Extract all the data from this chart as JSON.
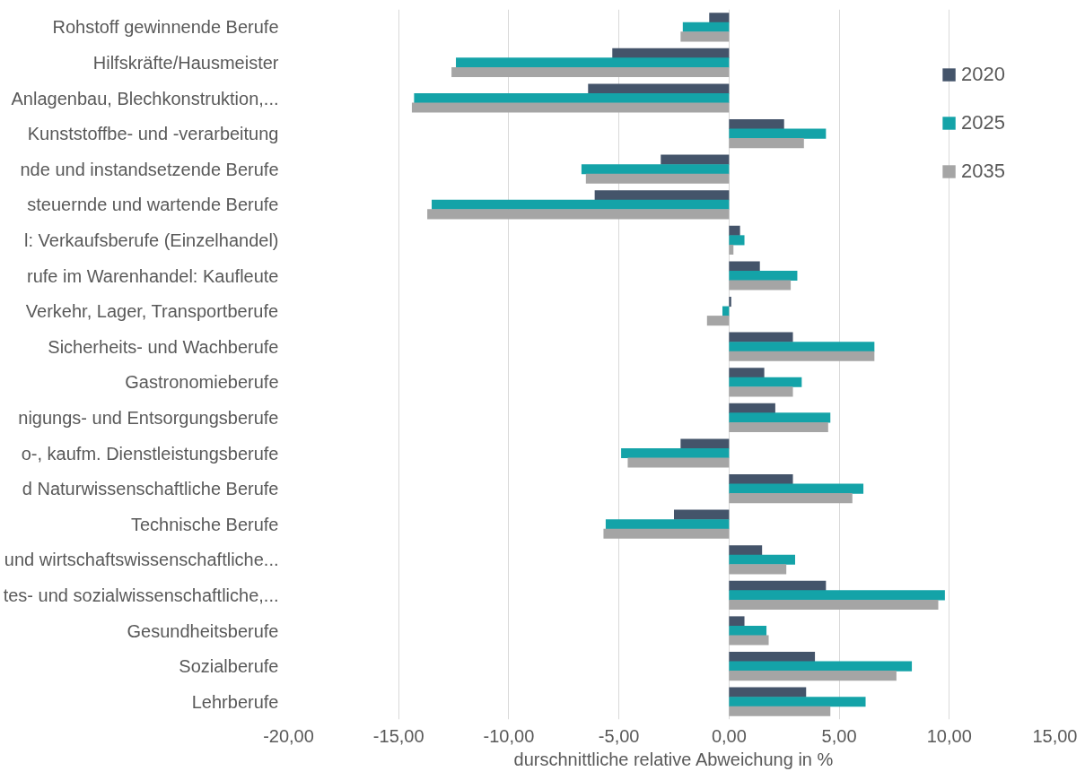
{
  "chart_data": {
    "type": "bar",
    "orientation": "horizontal",
    "xlabel": "durschnittliche relative Abweichung in %",
    "categories": [
      "Rohstoff gewinnende Berufe",
      "Hilfskräfte/Hausmeister",
      "Anlagenbau, Blechkonstruktion,...",
      "Kunststoffbe- und -verarbeitung",
      "nde und instandsetzende Berufe",
      "steuernde und wartende Berufe",
      "l: Verkaufsberufe (Einzelhandel)",
      "rufe im Warenhandel: Kaufleute",
      "Verkehr, Lager, Transportberufe",
      "Sicherheits- und Wachberufe",
      "Gastronomieberufe",
      "nigungs- und Entsorgungsberufe",
      "o-, kaufm. Dienstleistungsberufe",
      "d Naturwissenschaftliche Berufe",
      "Technische Berufe",
      "und wirtschaftswissenschaftliche...",
      "tes- und sozialwissenschaftliche,...",
      "Gesundheitsberufe",
      "Sozialberufe",
      "Lehrberufe"
    ],
    "series": [
      {
        "name": "2020",
        "color": "#44546a",
        "values": [
          -0.9,
          -5.3,
          -6.4,
          2.5,
          -3.1,
          -6.1,
          0.5,
          1.4,
          0.1,
          2.9,
          1.6,
          2.1,
          -2.2,
          2.9,
          -2.5,
          1.5,
          4.4,
          0.7,
          3.9,
          3.5
        ]
      },
      {
        "name": "2025",
        "color": "#14a3a8",
        "values": [
          -2.1,
          -12.4,
          -14.3,
          4.4,
          -6.7,
          -13.5,
          0.7,
          3.1,
          -0.3,
          6.6,
          3.3,
          4.6,
          -4.9,
          6.1,
          -5.6,
          3.0,
          9.8,
          1.7,
          8.3,
          6.2
        ]
      },
      {
        "name": "2035",
        "color": "#a5a5a5",
        "values": [
          -2.2,
          -12.6,
          -14.4,
          3.4,
          -6.5,
          -13.7,
          0.2,
          2.8,
          -1.0,
          6.6,
          2.9,
          4.5,
          -4.6,
          5.6,
          -5.7,
          2.6,
          9.5,
          1.8,
          7.6,
          4.6
        ]
      }
    ],
    "xlim": [
      -20,
      15
    ],
    "xticks": [
      {
        "value": -20,
        "label": "-20,00"
      },
      {
        "value": -15,
        "label": "-15,00"
      },
      {
        "value": -10,
        "label": "-10,00"
      },
      {
        "value": -5,
        "label": "-5,00"
      },
      {
        "value": 0,
        "label": "0,00"
      },
      {
        "value": 5,
        "label": "5,00"
      },
      {
        "value": 10,
        "label": "10,00"
      },
      {
        "value": 15,
        "label": "15,00"
      }
    ],
    "grid": "x",
    "legend": "top right"
  }
}
